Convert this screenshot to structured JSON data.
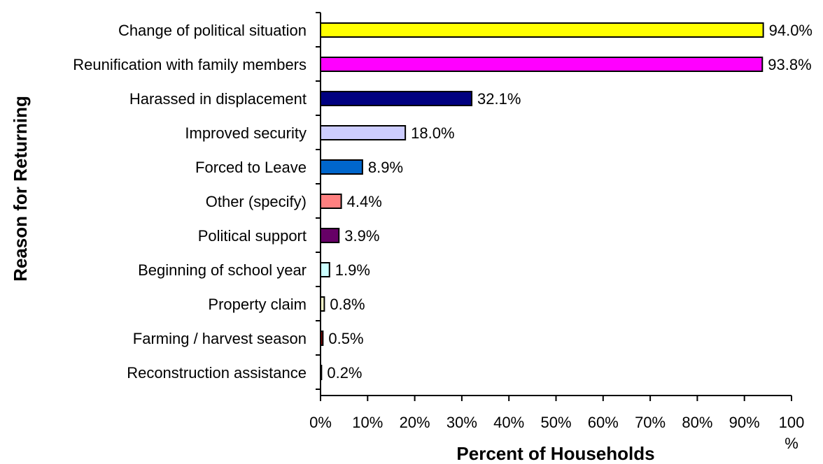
{
  "chart_data": {
    "type": "bar",
    "orientation": "horizontal",
    "categories": [
      "Change of political situation",
      "Reunification with family members",
      "Harassed in displacement",
      "Improved security",
      "Forced to Leave",
      "Other (specify)",
      "Political support",
      "Beginning of school year",
      "Property claim",
      "Farming / harvest season",
      "Reconstruction assistance"
    ],
    "values": [
      94.0,
      93.8,
      32.1,
      18.0,
      8.9,
      4.4,
      3.9,
      1.9,
      0.8,
      0.5,
      0.2
    ],
    "value_labels": [
      "94.0%",
      "93.8%",
      "32.1%",
      "18.0%",
      "8.9%",
      "4.4%",
      "3.9%",
      "1.9%",
      "0.8%",
      "0.5%",
      "0.2%"
    ],
    "colors": [
      "#ffff00",
      "#ff00ff",
      "#000080",
      "#ccccff",
      "#0066cc",
      "#ff8080",
      "#660066",
      "#ccffff",
      "#ffffcc",
      "#800000",
      "#800080"
    ],
    "xlim": [
      0,
      100
    ],
    "xticks": [
      "0%",
      "10%",
      "20%",
      "30%",
      "40%",
      "50%",
      "60%",
      "70%",
      "80%",
      "90%",
      "100"
    ],
    "xtick_last_suffix": "%",
    "xlabel": "Percent of Households",
    "ylabel": "Reason for Returning",
    "grid": false,
    "legend": "none"
  }
}
